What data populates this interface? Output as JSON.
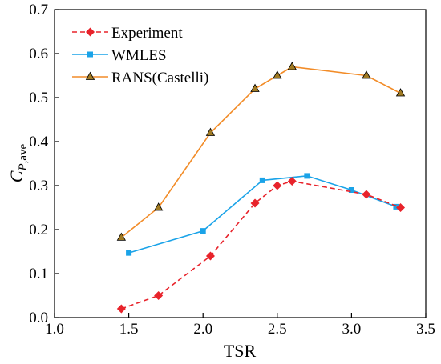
{
  "chart_data": {
    "type": "line",
    "xlabel": "TSR",
    "ylabel_main": "C",
    "ylabel_sub": "P",
    "ylabel_sub2": ",ave",
    "xlim": [
      1.0,
      3.5
    ],
    "ylim": [
      0.0,
      0.7
    ],
    "xticks": [
      "1.0",
      "1.5",
      "2.0",
      "2.5",
      "3.0",
      "3.5"
    ],
    "yticks": [
      "0.0",
      "0.1",
      "0.2",
      "0.3",
      "0.4",
      "0.5",
      "0.6",
      "0.7"
    ],
    "xtick_values": [
      1.0,
      1.5,
      2.0,
      2.5,
      3.0,
      3.5
    ],
    "ytick_values": [
      0.0,
      0.1,
      0.2,
      0.3,
      0.4,
      0.5,
      0.6,
      0.7
    ],
    "grid": false,
    "legend_position": "top-left",
    "series": [
      {
        "name": "Experiment",
        "color": "#e8232b",
        "marker": "diamond",
        "line_style": "dashed",
        "x": [
          1.45,
          1.7,
          2.05,
          2.35,
          2.5,
          2.6,
          3.1,
          3.33
        ],
        "y": [
          0.02,
          0.05,
          0.14,
          0.26,
          0.3,
          0.31,
          0.28,
          0.25
        ]
      },
      {
        "name": "WMLES",
        "color": "#1aa3e8",
        "marker": "square",
        "line_style": "solid",
        "x": [
          1.5,
          2.0,
          2.4,
          2.7,
          3.0,
          3.3
        ],
        "y": [
          0.147,
          0.197,
          0.312,
          0.322,
          0.29,
          0.252
        ]
      },
      {
        "name": "RANS(Castelli)",
        "color": "#f28c28",
        "marker": "triangle",
        "line_style": "solid",
        "x": [
          1.45,
          1.7,
          2.05,
          2.35,
          2.5,
          2.6,
          3.1,
          3.33
        ],
        "y": [
          0.182,
          0.25,
          0.42,
          0.52,
          0.55,
          0.57,
          0.55,
          0.51
        ]
      }
    ]
  }
}
